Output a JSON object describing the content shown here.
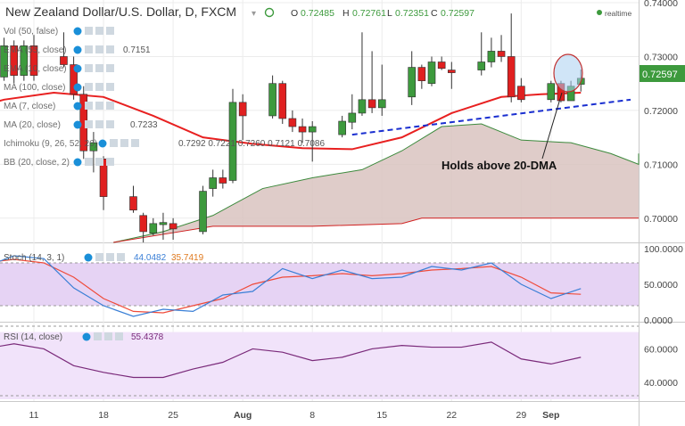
{
  "header": {
    "symbol": "New Zealand Dollar/U.S. Dollar, D, FXCM",
    "ohlc": {
      "o_label": "O",
      "o": "0.72485",
      "h_label": "H",
      "h": "0.72761",
      "l_label": "L",
      "l": "0.72351",
      "c_label": "C",
      "c": "0.72597"
    },
    "realtime": "realtime"
  },
  "legend": [
    {
      "text": "Vol (50, false)",
      "value": ""
    },
    {
      "text": "EMA (55, close)",
      "value": "0.7151"
    },
    {
      "text": "EMA (10, close)",
      "value": ""
    },
    {
      "text": "MA (100, close)",
      "value": ""
    },
    {
      "text": "MA (7, close)",
      "value": ""
    },
    {
      "text": "MA (20, close)",
      "value": "0.7233"
    },
    {
      "text": "Ichimoku (9, 26, 52, 26)",
      "value": "0.7292 0.7221 0.7260 0.7121 0.7086"
    },
    {
      "text": "BB (20, close, 2)",
      "value": ""
    }
  ],
  "price_label": "0.72597",
  "annotation": "Holds above 20-DMA",
  "colors": {
    "up": "#3d9a3d",
    "down": "#e02020",
    "ma20": "#e82020",
    "cloud": "#d9c3c0",
    "trend": "#1a2fd0",
    "stoch_fill": "#e6d3f4",
    "rsi_fill": "#f1e3fa"
  },
  "stoch": {
    "label": "Stoch (14, 3, 1)",
    "k": "44.0482",
    "d": "35.7419",
    "ticks": [
      "100.0000",
      "50.0000",
      "0.0000"
    ]
  },
  "rsi": {
    "label": "RSI (14, close)",
    "value": "55.4378",
    "ticks": [
      "60.0000",
      "40.0000"
    ]
  },
  "chart_data": {
    "type": "candlestick",
    "title": "New Zealand Dollar/U.S. Dollar, D, FXCM",
    "y_ticks": [
      "0.74000",
      "0.73000",
      "0.72000",
      "0.71000",
      "0.70000"
    ],
    "ylim": [
      0.6955,
      0.7405
    ],
    "x_ticks": [
      {
        "label": "11",
        "day": 11
      },
      {
        "label": "18",
        "day": 18
      },
      {
        "label": "25",
        "day": 25
      },
      {
        "label": "Aug",
        "day": 32
      },
      {
        "label": "8",
        "day": 39
      },
      {
        "label": "15",
        "day": 46
      },
      {
        "label": "22",
        "day": 53
      },
      {
        "label": "29",
        "day": 60
      },
      {
        "label": "Sep",
        "day": 63
      }
    ],
    "candles": [
      {
        "day": 7,
        "o": 0.729,
        "h": 0.732,
        "l": 0.724,
        "c": 0.726
      },
      {
        "day": 8,
        "o": 0.7262,
        "h": 0.7335,
        "l": 0.7255,
        "c": 0.732
      },
      {
        "day": 9,
        "o": 0.732,
        "h": 0.733,
        "l": 0.725,
        "c": 0.7265
      },
      {
        "day": 10,
        "o": 0.7265,
        "h": 0.733,
        "l": 0.7255,
        "c": 0.732
      },
      {
        "day": 11,
        "o": 0.732,
        "h": 0.734,
        "l": 0.7255,
        "c": 0.7265
      },
      {
        "day": 14,
        "o": 0.73,
        "h": 0.7345,
        "l": 0.728,
        "c": 0.7285
      },
      {
        "day": 15,
        "o": 0.7285,
        "h": 0.73,
        "l": 0.722,
        "c": 0.723
      },
      {
        "day": 16,
        "o": 0.723,
        "h": 0.7245,
        "l": 0.711,
        "c": 0.7125
      },
      {
        "day": 17,
        "o": 0.7125,
        "h": 0.716,
        "l": 0.7085,
        "c": 0.714
      },
      {
        "day": 18,
        "o": 0.711,
        "h": 0.7115,
        "l": 0.7015,
        "c": 0.704
      },
      {
        "day": 21,
        "o": 0.704,
        "h": 0.706,
        "l": 0.701,
        "c": 0.7015
      },
      {
        "day": 22,
        "o": 0.7005,
        "h": 0.701,
        "l": 0.6955,
        "c": 0.6975
      },
      {
        "day": 23,
        "o": 0.6972,
        "h": 0.7,
        "l": 0.6968,
        "c": 0.699
      },
      {
        "day": 24,
        "o": 0.6988,
        "h": 0.701,
        "l": 0.696,
        "c": 0.6992
      },
      {
        "day": 25,
        "o": 0.699,
        "h": 0.7,
        "l": 0.696,
        "c": 0.698
      },
      {
        "day": 28,
        "o": 0.6975,
        "h": 0.706,
        "l": 0.697,
        "c": 0.705
      },
      {
        "day": 29,
        "o": 0.7055,
        "h": 0.709,
        "l": 0.704,
        "c": 0.7075
      },
      {
        "day": 30,
        "o": 0.7075,
        "h": 0.709,
        "l": 0.7055,
        "c": 0.7065
      },
      {
        "day": 31,
        "o": 0.707,
        "h": 0.724,
        "l": 0.7065,
        "c": 0.7215
      },
      {
        "day": 32,
        "o": 0.7215,
        "h": 0.723,
        "l": 0.7145,
        "c": 0.719
      },
      {
        "day": 35,
        "o": 0.719,
        "h": 0.7265,
        "l": 0.7185,
        "c": 0.725
      },
      {
        "day": 36,
        "o": 0.725,
        "h": 0.7255,
        "l": 0.7175,
        "c": 0.7185
      },
      {
        "day": 37,
        "o": 0.7185,
        "h": 0.72,
        "l": 0.716,
        "c": 0.717
      },
      {
        "day": 38,
        "o": 0.717,
        "h": 0.7185,
        "l": 0.714,
        "c": 0.716
      },
      {
        "day": 39,
        "o": 0.716,
        "h": 0.718,
        "l": 0.7105,
        "c": 0.717
      },
      {
        "day": 42,
        "o": 0.7155,
        "h": 0.719,
        "l": 0.715,
        "c": 0.718
      },
      {
        "day": 43,
        "o": 0.7178,
        "h": 0.723,
        "l": 0.7165,
        "c": 0.7195
      },
      {
        "day": 44,
        "o": 0.7195,
        "h": 0.7345,
        "l": 0.719,
        "c": 0.722
      },
      {
        "day": 45,
        "o": 0.722,
        "h": 0.731,
        "l": 0.7195,
        "c": 0.7205
      },
      {
        "day": 46,
        "o": 0.7205,
        "h": 0.7285,
        "l": 0.719,
        "c": 0.722
      },
      {
        "day": 49,
        "o": 0.7225,
        "h": 0.731,
        "l": 0.721,
        "c": 0.728
      },
      {
        "day": 50,
        "o": 0.728,
        "h": 0.7285,
        "l": 0.724,
        "c": 0.7255
      },
      {
        "day": 51,
        "o": 0.725,
        "h": 0.73,
        "l": 0.7245,
        "c": 0.729
      },
      {
        "day": 52,
        "o": 0.729,
        "h": 0.73,
        "l": 0.7275,
        "c": 0.7278
      },
      {
        "day": 53,
        "o": 0.7275,
        "h": 0.729,
        "l": 0.724,
        "c": 0.727
      },
      {
        "day": 56,
        "o": 0.7275,
        "h": 0.7345,
        "l": 0.7265,
        "c": 0.729
      },
      {
        "day": 57,
        "o": 0.729,
        "h": 0.7335,
        "l": 0.728,
        "c": 0.731
      },
      {
        "day": 58,
        "o": 0.731,
        "h": 0.734,
        "l": 0.729,
        "c": 0.73
      },
      {
        "day": 59,
        "o": 0.73,
        "h": 0.738,
        "l": 0.7215,
        "c": 0.7225
      },
      {
        "day": 60,
        "o": 0.7245,
        "h": 0.726,
        "l": 0.7215,
        "c": 0.722
      },
      {
        "day": 63,
        "o": 0.722,
        "h": 0.7255,
        "l": 0.7215,
        "c": 0.725
      },
      {
        "day": 64,
        "o": 0.725,
        "h": 0.7255,
        "l": 0.7215,
        "c": 0.7218
      },
      {
        "day": 65,
        "o": 0.7218,
        "h": 0.7255,
        "l": 0.7218,
        "c": 0.7245
      },
      {
        "day": 66,
        "o": 0.72485,
        "h": 0.72761,
        "l": 0.72351,
        "c": 0.72597
      }
    ],
    "ma20": [
      {
        "day": 3,
        "v": 0.7195
      },
      {
        "day": 8,
        "v": 0.722
      },
      {
        "day": 13,
        "v": 0.7233
      },
      {
        "day": 18,
        "v": 0.7225
      },
      {
        "day": 23,
        "v": 0.719
      },
      {
        "day": 28,
        "v": 0.715
      },
      {
        "day": 33,
        "v": 0.7138
      },
      {
        "day": 38,
        "v": 0.713
      },
      {
        "day": 43,
        "v": 0.7128
      },
      {
        "day": 48,
        "v": 0.715
      },
      {
        "day": 53,
        "v": 0.7195
      },
      {
        "day": 58,
        "v": 0.7225
      },
      {
        "day": 62,
        "v": 0.723
      },
      {
        "day": 66,
        "v": 0.7233
      }
    ],
    "cloud_upper": [
      {
        "day": 19,
        "v": 0.6955
      },
      {
        "day": 24,
        "v": 0.6975
      },
      {
        "day": 29,
        "v": 0.7005
      },
      {
        "day": 34,
        "v": 0.7055
      },
      {
        "day": 39,
        "v": 0.7075
      },
      {
        "day": 44,
        "v": 0.709
      },
      {
        "day": 48,
        "v": 0.7125
      },
      {
        "day": 52,
        "v": 0.717
      },
      {
        "day": 56,
        "v": 0.7175
      },
      {
        "day": 60,
        "v": 0.7145
      },
      {
        "day": 65,
        "v": 0.714
      },
      {
        "day": 69,
        "v": 0.712
      },
      {
        "day": 73,
        "v": 0.71
      },
      {
        "day": 76,
        "v": 0.7115
      },
      {
        "day": 80,
        "v": 0.712
      }
    ],
    "cloud_lower": [
      {
        "day": 19,
        "v": 0.6955
      },
      {
        "day": 24,
        "v": 0.697
      },
      {
        "day": 29,
        "v": 0.6985
      },
      {
        "day": 39,
        "v": 0.6985
      },
      {
        "day": 48,
        "v": 0.699
      },
      {
        "day": 50,
        "v": 0.7
      },
      {
        "day": 80,
        "v": 0.7
      }
    ],
    "trendline": [
      {
        "day": 43,
        "v": 0.7155
      },
      {
        "day": 71,
        "v": 0.722
      }
    ],
    "stoch_k": [
      {
        "day": 0,
        "v": 82
      },
      {
        "day": 3,
        "v": 94
      },
      {
        "day": 6,
        "v": 74
      },
      {
        "day": 9,
        "v": 90
      },
      {
        "day": 12,
        "v": 86
      },
      {
        "day": 15,
        "v": 45
      },
      {
        "day": 18,
        "v": 20
      },
      {
        "day": 21,
        "v": 5
      },
      {
        "day": 24,
        "v": 15
      },
      {
        "day": 27,
        "v": 12
      },
      {
        "day": 30,
        "v": 35
      },
      {
        "day": 33,
        "v": 40
      },
      {
        "day": 36,
        "v": 72
      },
      {
        "day": 39,
        "v": 58
      },
      {
        "day": 42,
        "v": 70
      },
      {
        "day": 45,
        "v": 58
      },
      {
        "day": 48,
        "v": 60
      },
      {
        "day": 51,
        "v": 75
      },
      {
        "day": 54,
        "v": 70
      },
      {
        "day": 57,
        "v": 80
      },
      {
        "day": 60,
        "v": 50
      },
      {
        "day": 63,
        "v": 30
      },
      {
        "day": 66,
        "v": 44
      }
    ],
    "stoch_d": [
      {
        "day": 0,
        "v": 78
      },
      {
        "day": 3,
        "v": 85
      },
      {
        "day": 6,
        "v": 80
      },
      {
        "day": 9,
        "v": 85
      },
      {
        "day": 12,
        "v": 80
      },
      {
        "day": 15,
        "v": 60
      },
      {
        "day": 18,
        "v": 30
      },
      {
        "day": 21,
        "v": 12
      },
      {
        "day": 24,
        "v": 10
      },
      {
        "day": 27,
        "v": 20
      },
      {
        "day": 30,
        "v": 30
      },
      {
        "day": 33,
        "v": 50
      },
      {
        "day": 36,
        "v": 60
      },
      {
        "day": 39,
        "v": 62
      },
      {
        "day": 42,
        "v": 65
      },
      {
        "day": 45,
        "v": 62
      },
      {
        "day": 48,
        "v": 65
      },
      {
        "day": 51,
        "v": 70
      },
      {
        "day": 54,
        "v": 72
      },
      {
        "day": 57,
        "v": 75
      },
      {
        "day": 60,
        "v": 60
      },
      {
        "day": 63,
        "v": 38
      },
      {
        "day": 66,
        "v": 36
      }
    ],
    "rsi_line": [
      {
        "day": 0,
        "v": 62
      },
      {
        "day": 3,
        "v": 66
      },
      {
        "day": 6,
        "v": 60
      },
      {
        "day": 9,
        "v": 63
      },
      {
        "day": 12,
        "v": 60
      },
      {
        "day": 15,
        "v": 50
      },
      {
        "day": 18,
        "v": 46
      },
      {
        "day": 21,
        "v": 43
      },
      {
        "day": 24,
        "v": 43
      },
      {
        "day": 27,
        "v": 48
      },
      {
        "day": 30,
        "v": 52
      },
      {
        "day": 33,
        "v": 60
      },
      {
        "day": 36,
        "v": 58
      },
      {
        "day": 39,
        "v": 53
      },
      {
        "day": 42,
        "v": 55
      },
      {
        "day": 45,
        "v": 60
      },
      {
        "day": 48,
        "v": 62
      },
      {
        "day": 51,
        "v": 61
      },
      {
        "day": 54,
        "v": 61
      },
      {
        "day": 57,
        "v": 64
      },
      {
        "day": 60,
        "v": 54
      },
      {
        "day": 63,
        "v": 51
      },
      {
        "day": 66,
        "v": 55
      }
    ]
  }
}
